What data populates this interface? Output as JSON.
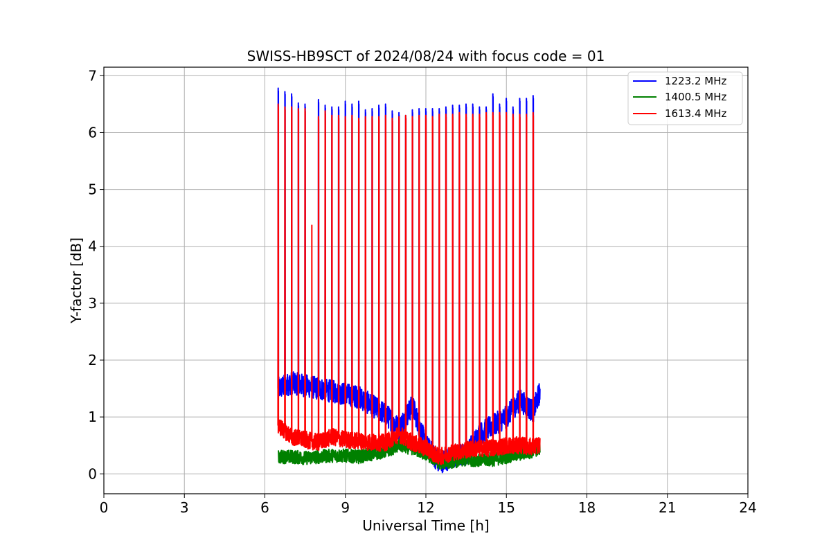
{
  "chart_data": {
    "type": "line",
    "title": "SWISS-HB9SCT of 2024/08/24 with focus code = 01",
    "xlabel": "Universal Time [h]",
    "ylabel": "Y-factor [dB]",
    "xlim": [
      0,
      24
    ],
    "ylim": [
      -0.35,
      7.15
    ],
    "xticks": [
      0,
      3,
      6,
      9,
      12,
      15,
      18,
      21,
      24
    ],
    "xtick_labels": [
      "0",
      "3",
      "6",
      "9",
      "12",
      "15",
      "18",
      "21",
      "24"
    ],
    "yticks": [
      0,
      1,
      2,
      3,
      4,
      5,
      6,
      7
    ],
    "ytick_labels": [
      "0",
      "1",
      "2",
      "3",
      "4",
      "5",
      "6",
      "7"
    ],
    "grid": true,
    "legend_position": "top-right",
    "data_range_hours": [
      6.5,
      16.25
    ],
    "calibration_spike_times": [
      6.5,
      6.75,
      7.0,
      7.25,
      7.5,
      8.0,
      8.25,
      8.5,
      8.75,
      9.0,
      9.25,
      9.5,
      9.75,
      10.0,
      10.25,
      10.5,
      10.75,
      11.0,
      11.25,
      11.5,
      11.75,
      12.0,
      12.25,
      12.5,
      12.75,
      13.0,
      13.25,
      13.5,
      13.75,
      14.0,
      14.25,
      14.5,
      14.75,
      15.0,
      15.25,
      15.5,
      15.75,
      16.0
    ],
    "series": [
      {
        "name": "1223.2 MHz",
        "color": "#0000ff",
        "spike_peaks": [
          6.78,
          6.72,
          6.68,
          6.52,
          6.5,
          6.58,
          6.48,
          6.45,
          6.45,
          6.55,
          6.5,
          6.55,
          6.4,
          6.42,
          6.48,
          6.5,
          6.38,
          6.35,
          6.3,
          6.4,
          6.42,
          6.42,
          6.42,
          6.42,
          6.45,
          6.48,
          6.48,
          6.5,
          6.5,
          6.45,
          6.45,
          6.68,
          6.5,
          6.6,
          6.45,
          6.6,
          6.6,
          6.65
        ],
        "baseline": [
          [
            6.5,
            1.5
          ],
          [
            7.0,
            1.6
          ],
          [
            7.5,
            1.55
          ],
          [
            8.0,
            1.5
          ],
          [
            8.5,
            1.45
          ],
          [
            9.0,
            1.4
          ],
          [
            9.5,
            1.35
          ],
          [
            10.0,
            1.2
          ],
          [
            10.5,
            1.05
          ],
          [
            11.0,
            0.8
          ],
          [
            11.5,
            1.2
          ],
          [
            12.0,
            0.5
          ],
          [
            12.5,
            0.2
          ],
          [
            13.0,
            0.3
          ],
          [
            13.5,
            0.35
          ],
          [
            14.0,
            0.7
          ],
          [
            14.5,
            0.85
          ],
          [
            15.0,
            1.0
          ],
          [
            15.5,
            1.3
          ],
          [
            16.0,
            1.1
          ],
          [
            16.25,
            1.45
          ]
        ]
      },
      {
        "name": "1400.5 MHz",
        "color": "#008000",
        "spike_peaks": [],
        "baseline": [
          [
            6.5,
            0.3
          ],
          [
            7.0,
            0.3
          ],
          [
            7.5,
            0.28
          ],
          [
            8.0,
            0.3
          ],
          [
            8.5,
            0.32
          ],
          [
            9.0,
            0.32
          ],
          [
            9.5,
            0.3
          ],
          [
            10.0,
            0.35
          ],
          [
            10.5,
            0.4
          ],
          [
            11.0,
            0.5
          ],
          [
            11.5,
            0.45
          ],
          [
            12.0,
            0.35
          ],
          [
            12.5,
            0.2
          ],
          [
            13.0,
            0.22
          ],
          [
            13.5,
            0.25
          ],
          [
            14.0,
            0.25
          ],
          [
            14.5,
            0.25
          ],
          [
            15.0,
            0.3
          ],
          [
            15.5,
            0.35
          ],
          [
            16.0,
            0.4
          ],
          [
            16.25,
            0.45
          ]
        ]
      },
      {
        "name": "1613.4 MHz",
        "color": "#ff0000",
        "spike_peaks": [
          6.5,
          6.45,
          6.45,
          6.42,
          6.42,
          6.28,
          6.38,
          6.3,
          6.3,
          6.28,
          6.3,
          6.25,
          6.28,
          6.28,
          6.28,
          6.3,
          6.25,
          6.28,
          6.3,
          6.28,
          6.3,
          6.3,
          6.28,
          6.32,
          6.32,
          6.32,
          6.35,
          6.32,
          6.32,
          6.32,
          6.35,
          6.35,
          6.35,
          6.35,
          6.32,
          6.32,
          6.32,
          6.35
        ],
        "extra_peak": [
          7.75,
          4.37
        ],
        "baseline": [
          [
            6.5,
            0.85
          ],
          [
            7.0,
            0.65
          ],
          [
            7.5,
            0.6
          ],
          [
            8.0,
            0.55
          ],
          [
            8.5,
            0.65
          ],
          [
            9.0,
            0.6
          ],
          [
            9.5,
            0.58
          ],
          [
            10.0,
            0.55
          ],
          [
            10.5,
            0.55
          ],
          [
            11.0,
            0.7
          ],
          [
            11.5,
            0.55
          ],
          [
            12.0,
            0.45
          ],
          [
            12.5,
            0.3
          ],
          [
            13.0,
            0.38
          ],
          [
            13.5,
            0.42
          ],
          [
            14.0,
            0.45
          ],
          [
            14.5,
            0.45
          ],
          [
            15.0,
            0.5
          ],
          [
            15.5,
            0.5
          ],
          [
            16.0,
            0.48
          ],
          [
            16.25,
            0.5
          ]
        ]
      }
    ]
  }
}
